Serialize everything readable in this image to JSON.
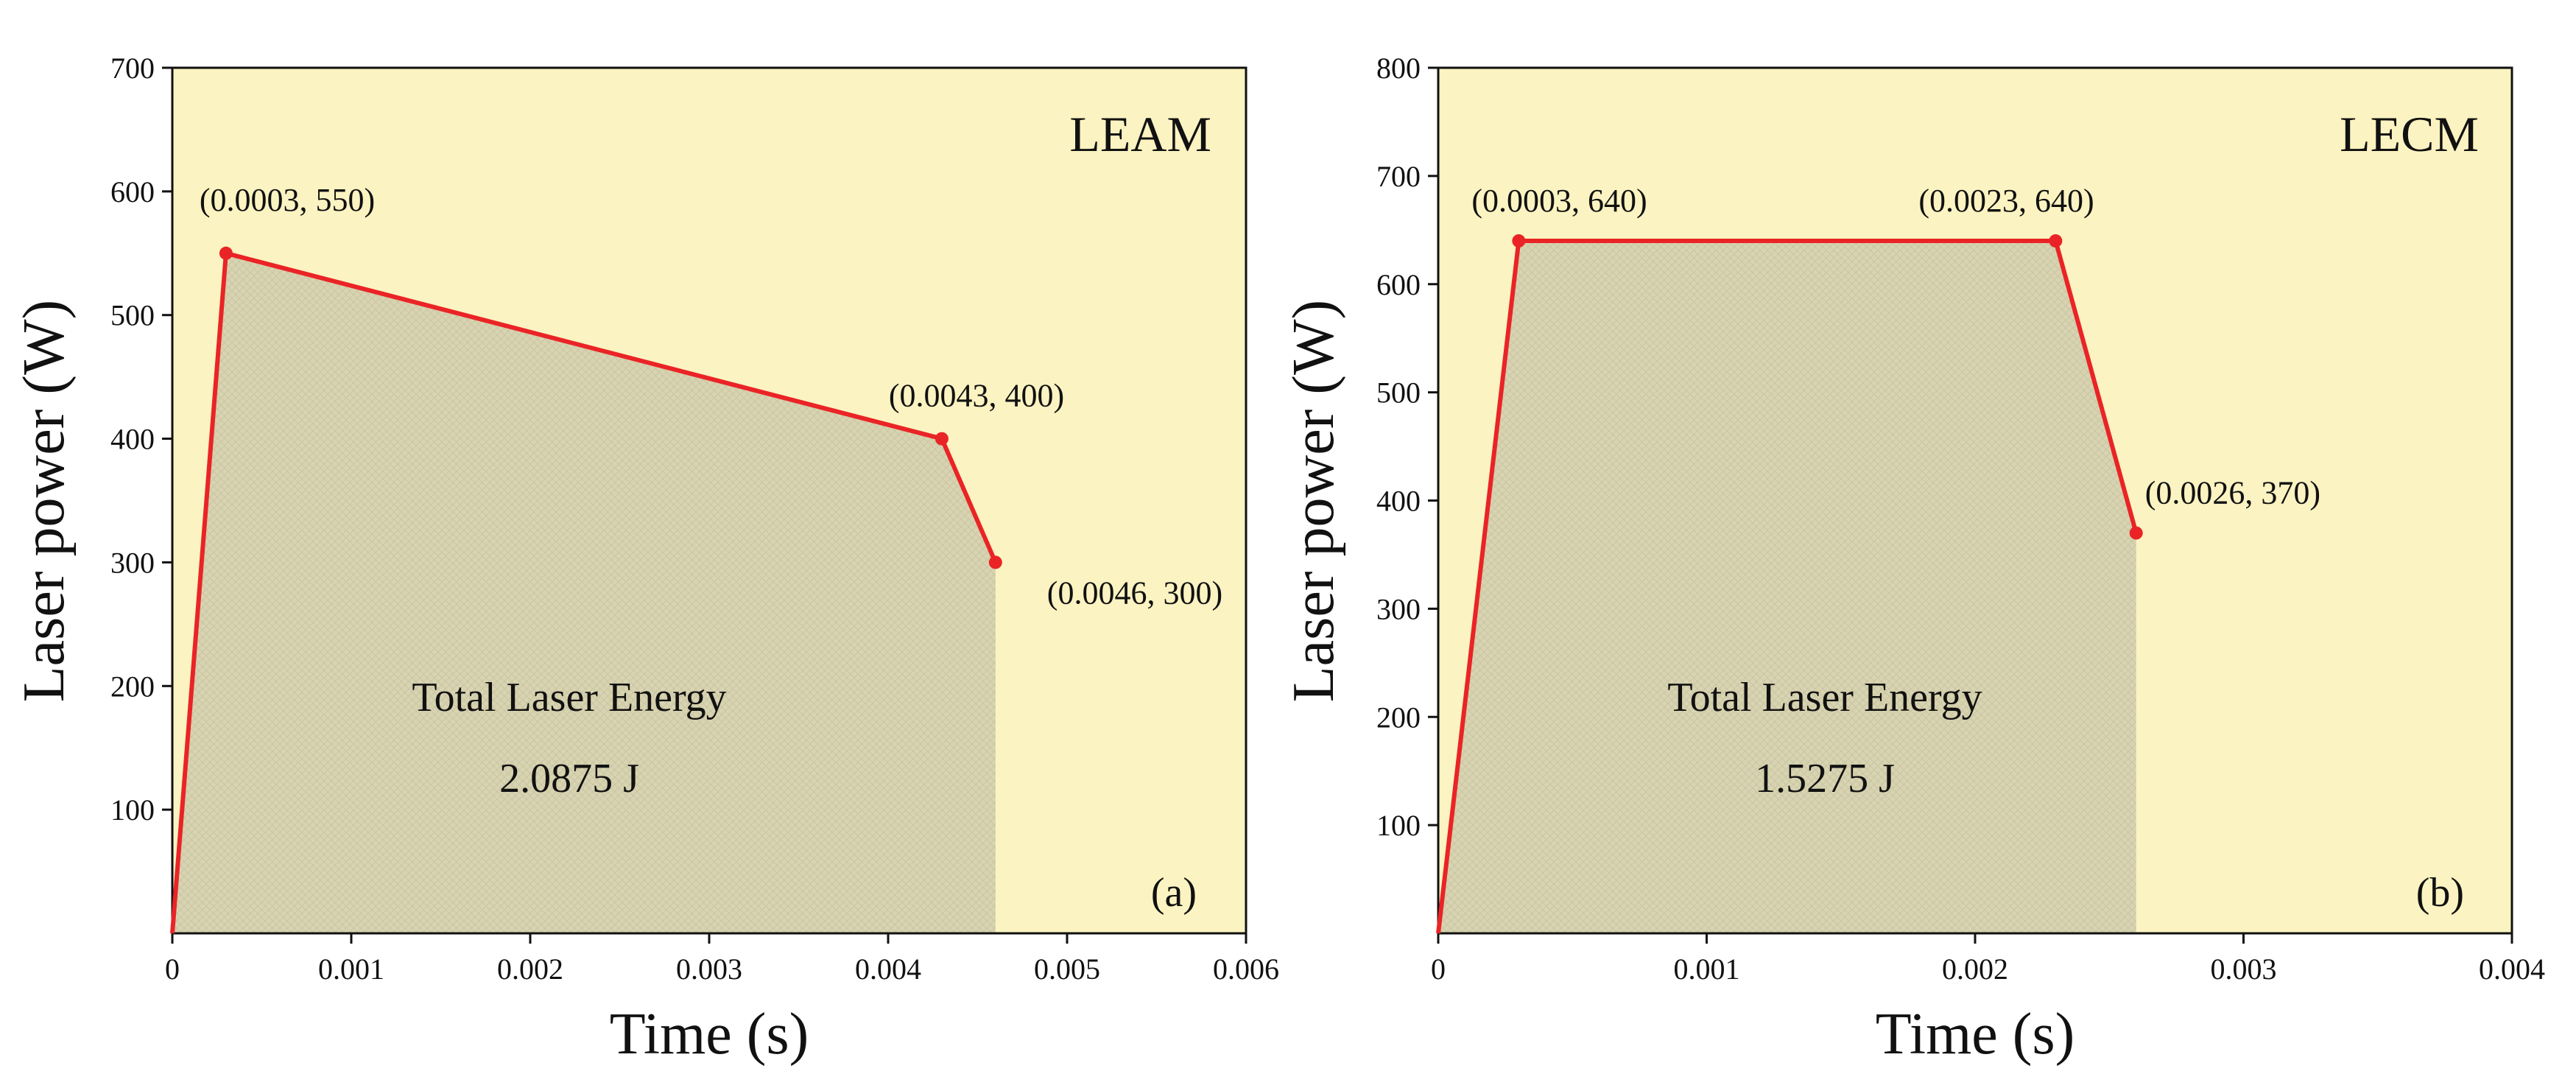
{
  "chart_data": [
    {
      "type": "line",
      "panel_label": "LEAM",
      "subfig": "(a)",
      "xlabel": "Time (s)",
      "ylabel": "Laser power (W)",
      "xlim": [
        0,
        0.006
      ],
      "ylim": [
        0,
        700
      ],
      "x_ticks": [
        0,
        0.001,
        0.002,
        0.003,
        0.004,
        0.005,
        0.006
      ],
      "x_tick_labels": [
        "0",
        "0.001",
        "0.002",
        "0.003",
        "0.004",
        "0.005",
        "0.006"
      ],
      "y_ticks": [
        100,
        200,
        300,
        400,
        500,
        600,
        700
      ],
      "y_tick_labels": [
        "100",
        "200",
        "300",
        "400",
        "500",
        "600",
        "700"
      ],
      "series": [
        {
          "name": "laser power",
          "x": [
            0,
            0.0003,
            0.0043,
            0.0046
          ],
          "y": [
            0,
            550,
            400,
            300
          ]
        }
      ],
      "point_labels": [
        "(0.0003, 550)",
        "(0.0043, 400)",
        "(0.0046, 300)"
      ],
      "annotation_line1": "Total Laser Energy",
      "annotation_line2": "2.0875 J"
    },
    {
      "type": "line",
      "panel_label": "LECM",
      "subfig": "(b)",
      "xlabel": "Time (s)",
      "ylabel": "Laser power (W)",
      "xlim": [
        0,
        0.004
      ],
      "ylim": [
        0,
        800
      ],
      "x_ticks": [
        0,
        0.001,
        0.002,
        0.003,
        0.004
      ],
      "x_tick_labels": [
        "0",
        "0.001",
        "0.002",
        "0.003",
        "0.004"
      ],
      "y_ticks": [
        100,
        200,
        300,
        400,
        500,
        600,
        700,
        800
      ],
      "y_tick_labels": [
        "100",
        "200",
        "300",
        "400",
        "500",
        "600",
        "700",
        "800"
      ],
      "series": [
        {
          "name": "laser power",
          "x": [
            0,
            0.0003,
            0.0023,
            0.0026
          ],
          "y": [
            0,
            640,
            640,
            370
          ]
        }
      ],
      "point_labels": [
        "(0.0003, 640)",
        "(0.0023, 640)",
        "(0.0026, 370)"
      ],
      "annotation_line1": "Total Laser Energy",
      "annotation_line2": "1.5275 J"
    }
  ],
  "colors": {
    "plot_background": "#fbf3c1",
    "fill_area": "#d6d1ad",
    "line": "#ea2426",
    "axis": "#111111"
  }
}
